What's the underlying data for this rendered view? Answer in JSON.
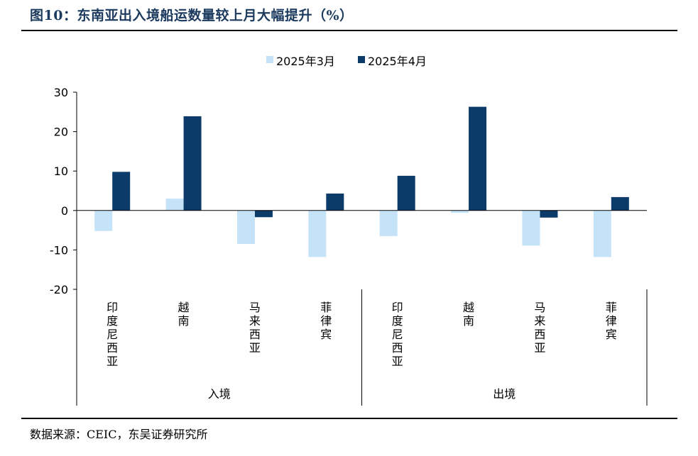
{
  "header": {
    "title": "图10：东南亚出入境船运数量较上月大幅提升（%）"
  },
  "footer": {
    "source": "数据来源：CEIC，东吴证券研究所"
  },
  "colors": {
    "series_march": "#c5e3f8",
    "series_april": "#0c3b69",
    "axis": "#000000",
    "title": "#1b3a5e"
  },
  "chart_data": {
    "type": "bar",
    "groups": [
      {
        "name": "入境",
        "categories": [
          "印度尼西亚",
          "越南",
          "马来西亚",
          "菲律宾"
        ]
      },
      {
        "name": "出境",
        "categories": [
          "印度尼西亚",
          "越南",
          "马来西亚",
          "菲律宾"
        ]
      }
    ],
    "categories": [
      "印度尼西亚",
      "越南",
      "马来西亚",
      "菲律宾",
      "印度尼西亚",
      "越南",
      "马来西亚",
      "菲律宾"
    ],
    "series": [
      {
        "name": "2025年3月",
        "values": [
          -5.2,
          3.0,
          -8.5,
          -11.8,
          -6.5,
          -0.6,
          -8.9,
          -11.8
        ]
      },
      {
        "name": "2025年4月",
        "values": [
          9.8,
          23.9,
          -1.7,
          4.3,
          8.8,
          26.3,
          -1.8,
          3.4
        ]
      }
    ],
    "ylim": [
      -20,
      30
    ],
    "yticks": [
      "30",
      "20",
      "10",
      "0",
      "-10",
      "-20"
    ],
    "ytick_values": [
      30,
      20,
      10,
      0,
      -10,
      -20
    ],
    "xlabel": "",
    "ylabel": "",
    "legend": "top-center",
    "grid": false
  }
}
